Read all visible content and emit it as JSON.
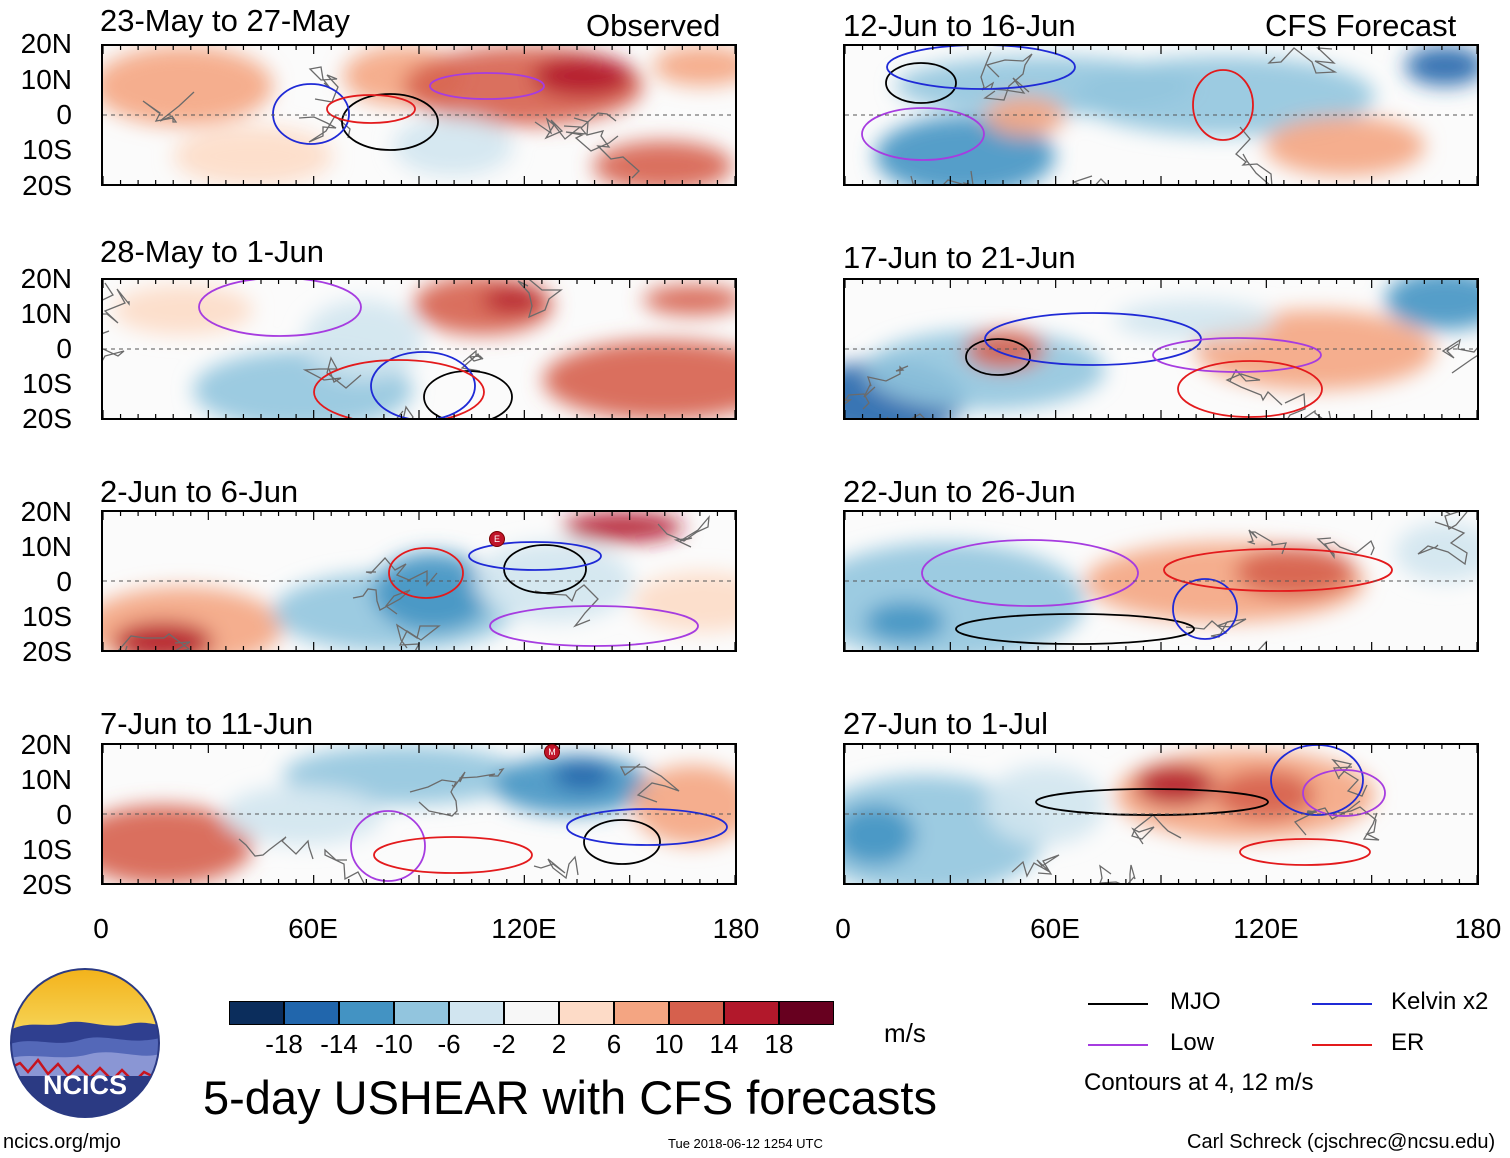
{
  "headers": {
    "observed": "Observed",
    "forecast": "CFS Forecast"
  },
  "lat_labels": [
    "20N",
    "10N",
    "0",
    "10S",
    "20S"
  ],
  "lon_labels": [
    "0",
    "60E",
    "120E",
    "180"
  ],
  "panels": {
    "observed": [
      {
        "title": "23-May to 27-May"
      },
      {
        "title": "28-May to 1-Jun"
      },
      {
        "title": "2-Jun to 6-Jun",
        "marker": "E"
      },
      {
        "title": "7-Jun to 11-Jun",
        "marker": "M"
      }
    ],
    "forecast": [
      {
        "title": "12-Jun to 16-Jun"
      },
      {
        "title": "17-Jun to 21-Jun"
      },
      {
        "title": "22-Jun to 26-Jun"
      },
      {
        "title": "27-Jun to 1-Jul"
      }
    ]
  },
  "colorbar": {
    "colors": [
      "#0b2d5c",
      "#2166ac",
      "#4393c3",
      "#92c5de",
      "#d1e5f0",
      "#f7f7f7",
      "#fddbc7",
      "#f4a582",
      "#d6604d",
      "#b2182b",
      "#67001f"
    ],
    "labels": [
      "-18",
      "-14",
      "-10",
      "-6",
      "-2",
      "2",
      "6",
      "10",
      "14",
      "18"
    ],
    "units": "m/s"
  },
  "legend": {
    "items": [
      {
        "label": "MJO",
        "color": "#000000"
      },
      {
        "label": "Kelvin x2",
        "color": "#1f2ad6"
      },
      {
        "label": "Low",
        "color": "#a63ce0"
      },
      {
        "label": "ER",
        "color": "#e31a1c"
      }
    ],
    "note": "Contours at 4, 12 m/s"
  },
  "main_title": "5-day USHEAR with CFS forecasts",
  "logo": {
    "text": "NCICS"
  },
  "footer": {
    "url": "ncics.org/mjo",
    "timestamp": "Tue 2018-06-12 1254 UTC",
    "credit": "Carl Schreck (cjschrec@ncsu.edu)"
  }
}
